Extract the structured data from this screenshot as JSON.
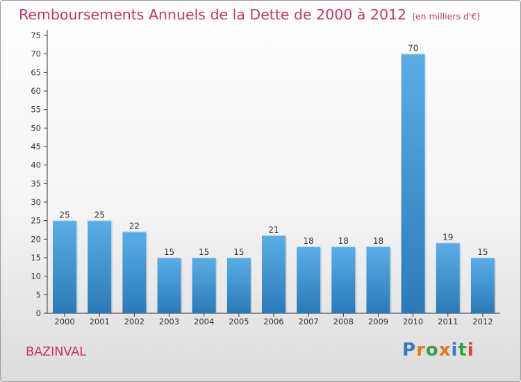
{
  "title": "Remboursements Annuels de la Dette de 2000 à 2012",
  "unit_note": "(en milliers d'€)",
  "place": "BAZINVAL",
  "logo_text": "Proxiti",
  "colors": {
    "title": "#c8346e",
    "bar_top": "#5aaee6",
    "bar_bottom": "#2a7ab8",
    "logo": [
      "#3a7cc4",
      "#e07a1c",
      "#3aa04a",
      "#e07a1c",
      "#3a7cc4",
      "#3aa04a",
      "#d84040"
    ]
  },
  "chart_data": {
    "type": "bar",
    "categories": [
      "2000",
      "2001",
      "2002",
      "2003",
      "2004",
      "2005",
      "2006",
      "2007",
      "2008",
      "2009",
      "2010",
      "2011",
      "2012"
    ],
    "values": [
      25,
      25,
      22,
      15,
      15,
      15,
      21,
      18,
      18,
      18,
      70,
      19,
      15
    ],
    "ylim": [
      0,
      75
    ],
    "yticks": [
      0,
      5,
      10,
      15,
      20,
      25,
      30,
      35,
      40,
      45,
      50,
      55,
      60,
      65,
      70,
      75
    ],
    "grid": false,
    "data_labels": true
  }
}
